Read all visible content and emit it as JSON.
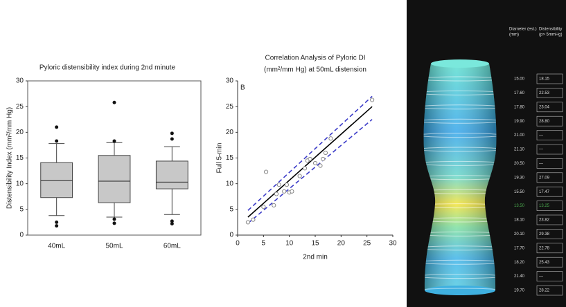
{
  "chart_data": [
    {
      "type": "box",
      "title": "Pyloric distensibility index during 2nd minute",
      "y_label": "Distensibility Index (mm²/mm Hg)",
      "categories": [
        "40mL",
        "50mL",
        "60mL"
      ],
      "min": [
        3.8,
        3.5,
        4.0
      ],
      "q1": [
        7.3,
        6.3,
        9.0
      ],
      "median": [
        10.6,
        10.5,
        10.3
      ],
      "q3": [
        14.1,
        15.5,
        14.4
      ],
      "max": [
        17.8,
        18.0,
        17.2
      ],
      "outliers": [
        [
          21.0,
          18.3,
          2.5,
          1.8
        ],
        [
          25.8,
          18.3,
          3.1,
          2.3
        ],
        [
          19.8,
          18.7,
          2.7,
          2.2
        ]
      ],
      "color": "#c8c8c8",
      "ylim": [
        0,
        30
      ],
      "yticks": [
        0,
        5,
        10,
        15,
        20,
        25,
        30
      ]
    },
    {
      "type": "scatter",
      "title": [
        "Correlation Analysis of Pyloric DI",
        "(mm²/mm Hg) at 50mL distension"
      ],
      "panel_label": "B",
      "x_label": "2nd min",
      "y_label": "Full 5-min",
      "series": [
        {
          "color": "#888888",
          "x": [
            2,
            3,
            5,
            5.5,
            7,
            7.5,
            8,
            9,
            9.5,
            10,
            10.5,
            12,
            13,
            13.5,
            14,
            15,
            16,
            16.5,
            17,
            18,
            26
          ],
          "values": [
            2.5,
            3,
            5.5,
            12.3,
            5.8,
            8,
            9.8,
            8.5,
            9.8,
            8.3,
            8.5,
            11.5,
            13,
            14.5,
            14.8,
            14,
            13.5,
            14.8,
            16,
            18.8,
            26.3
          ]
        }
      ],
      "lines": [
        {
          "x": [
            2,
            26
          ],
          "values": [
            3.5,
            25
          ],
          "color": "#000000",
          "dashed": false
        },
        {
          "x": [
            2,
            26
          ],
          "values": [
            4.8,
            27
          ],
          "color": "#3b3bc8",
          "dashed": true
        },
        {
          "x": [
            2,
            26
          ],
          "values": [
            2.3,
            22.5
          ],
          "color": "#3b3bc8",
          "dashed": true
        }
      ],
      "xlim": [
        0,
        30
      ],
      "xticks": [
        0,
        5,
        10,
        15,
        20,
        25,
        30
      ],
      "ylim": [
        0,
        30
      ],
      "yticks": [
        0,
        5,
        10,
        15,
        20,
        25,
        30
      ]
    }
  ],
  "table": {
    "headers": [
      [
        "Diameter (est.)",
        "(mm)"
      ],
      [
        "Distensibility",
        "(p> 5mmHg)"
      ]
    ],
    "rows": [
      [
        "15.00",
        "18.15"
      ],
      [
        "17.60",
        "22.53"
      ],
      [
        "17.80",
        "23.04"
      ],
      [
        "19.90",
        "28.80"
      ],
      [
        "21.00",
        "—"
      ],
      [
        "21.10",
        "—"
      ],
      [
        "20.50",
        "—"
      ],
      [
        "19.30",
        "27.09"
      ],
      [
        "15.50",
        "17.47"
      ],
      [
        "13.50",
        "13.25"
      ],
      [
        "18.10",
        "23.82"
      ],
      [
        "20.10",
        "29.38"
      ],
      [
        "17.70",
        "22.78"
      ],
      [
        "18.20",
        "25.43"
      ],
      [
        "21.40",
        "—"
      ],
      [
        "19.70",
        "28.22"
      ]
    ],
    "highlight_row": 9,
    "highlight_color": "#4caf50"
  }
}
